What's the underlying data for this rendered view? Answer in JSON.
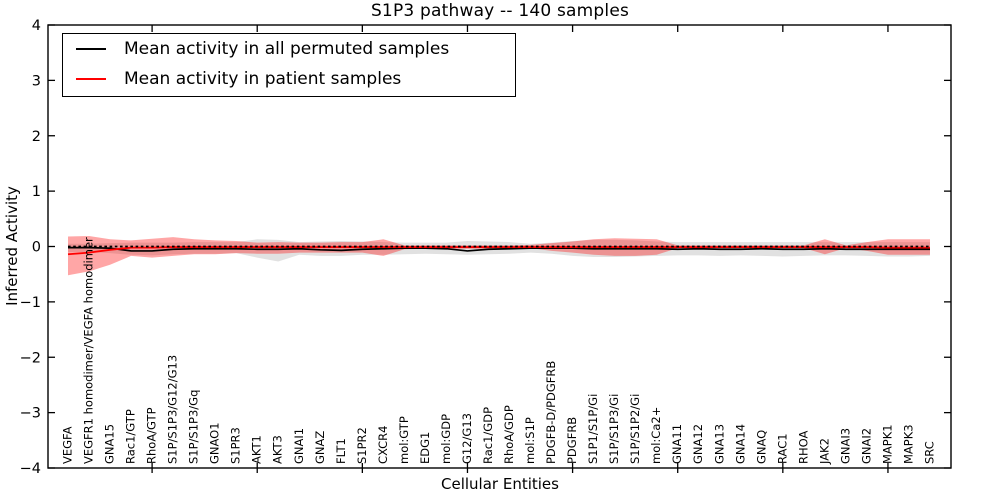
{
  "chart_data": {
    "type": "line",
    "title": "S1P3 pathway -- 140 samples",
    "xlabel": "Cellular Entities",
    "ylabel": "Inferred Activity",
    "ylim": [
      -4,
      4
    ],
    "yticks": [
      {
        "value": 4,
        "label": "4"
      },
      {
        "value": 3,
        "label": "3"
      },
      {
        "value": 2,
        "label": "2"
      },
      {
        "value": 1,
        "label": "1"
      },
      {
        "value": 0,
        "label": "0"
      },
      {
        "value": -1,
        "label": "−1"
      },
      {
        "value": -2,
        "label": "−2"
      },
      {
        "value": -3,
        "label": "−3"
      },
      {
        "value": -4,
        "label": "−4"
      }
    ],
    "x_major_tick_indices": [
      4,
      9,
      14,
      19,
      24,
      29,
      34,
      39
    ],
    "grid": false,
    "legend_position": "upper left",
    "zero_reference_line": {
      "y": 0,
      "style": "dotted",
      "color": "#000000"
    },
    "categories": [
      "VEGFA",
      "VEGFR1 homodimer/VEGFA homodimer",
      "GNA15",
      "Rac1/GTP",
      "RhoA/GTP",
      "S1P/S1P3/G12/G13",
      "S1P/S1P3/Gq",
      "GNAO1",
      "S1PR3",
      "AKT1",
      "AKT3",
      "GNAI1",
      "GNAZ",
      "FLT1",
      "S1PR2",
      "CXCR4",
      "mol:GTP",
      "EDG1",
      "mol:GDP",
      "G12/G13",
      "Rac1/GDP",
      "RhoA/GDP",
      "mol:S1P",
      "PDGFB-D/PDGFRB",
      "PDGFRB",
      "S1P1/S1P/Gi",
      "S1P/S1P3/Gi",
      "S1P/S1P2/Gi",
      "mol:Ca2+",
      "GNA11",
      "GNA12",
      "GNA13",
      "GNA14",
      "GNAQ",
      "RAC1",
      "RHOA",
      "JAK2",
      "GNAI3",
      "GNAI2",
      "MAPK1",
      "MAPK3",
      "SRC"
    ],
    "series": [
      {
        "name": "Mean activity in all permuted samples",
        "color": "#000000",
        "values": [
          -0.02,
          -0.02,
          -0.03,
          -0.08,
          -0.08,
          -0.05,
          -0.04,
          -0.04,
          -0.04,
          -0.05,
          -0.05,
          -0.04,
          -0.06,
          -0.07,
          -0.05,
          -0.04,
          -0.03,
          -0.03,
          -0.04,
          -0.08,
          -0.05,
          -0.04,
          -0.03,
          -0.03,
          -0.03,
          -0.04,
          -0.04,
          -0.04,
          -0.04,
          -0.05,
          -0.04,
          -0.05,
          -0.05,
          -0.04,
          -0.05,
          -0.05,
          -0.04,
          -0.05,
          -0.05,
          -0.05,
          -0.05,
          -0.05
        ]
      },
      {
        "name": "Mean activity in patient samples",
        "color": "#ff0000",
        "values": [
          -0.14,
          -0.11,
          -0.06,
          -0.02,
          -0.02,
          -0.01,
          -0.01,
          -0.01,
          -0.01,
          -0.01,
          -0.01,
          -0.01,
          -0.01,
          -0.01,
          -0.01,
          -0.01,
          -0.01,
          -0.01,
          -0.01,
          -0.01,
          -0.01,
          -0.01,
          -0.01,
          -0.01,
          -0.01,
          -0.01,
          -0.01,
          -0.01,
          -0.01,
          -0.01,
          -0.01,
          -0.01,
          -0.01,
          -0.01,
          -0.01,
          -0.01,
          -0.01,
          -0.01,
          -0.01,
          -0.02,
          -0.02,
          -0.02
        ]
      }
    ],
    "bands": [
      {
        "name": "permuted-range",
        "color": "#787878",
        "alpha": 0.22,
        "hi": [
          0.05,
          0.05,
          0.06,
          0.07,
          0.07,
          0.07,
          0.08,
          0.08,
          0.08,
          0.13,
          0.12,
          0.08,
          0.09,
          0.1,
          0.09,
          0.08,
          0.07,
          0.07,
          0.07,
          0.1,
          0.09,
          0.08,
          0.05,
          0.07,
          0.1,
          0.12,
          0.12,
          0.11,
          0.09,
          0.08,
          0.08,
          0.08,
          0.08,
          0.08,
          0.08,
          0.08,
          0.08,
          0.08,
          0.08,
          0.08,
          0.08,
          0.08
        ],
        "lo": [
          -0.1,
          -0.1,
          -0.12,
          -0.15,
          -0.16,
          -0.14,
          -0.13,
          -0.13,
          -0.12,
          -0.2,
          -0.27,
          -0.15,
          -0.17,
          -0.17,
          -0.15,
          -0.15,
          -0.14,
          -0.13,
          -0.14,
          -0.15,
          -0.14,
          -0.13,
          -0.11,
          -0.13,
          -0.17,
          -0.19,
          -0.19,
          -0.18,
          -0.17,
          -0.16,
          -0.16,
          -0.17,
          -0.16,
          -0.17,
          -0.18,
          -0.17,
          -0.16,
          -0.16,
          -0.17,
          -0.18,
          -0.18,
          -0.17
        ]
      },
      {
        "name": "patient-range",
        "color": "#ff1414",
        "alpha": 0.38,
        "hi": [
          0.18,
          0.19,
          0.13,
          0.11,
          0.14,
          0.17,
          0.13,
          0.11,
          0.1,
          0.07,
          0.08,
          0.07,
          0.07,
          0.08,
          0.08,
          0.13,
          0.02,
          0.02,
          0.02,
          0.02,
          0.02,
          0.02,
          0.03,
          0.06,
          0.09,
          0.13,
          0.15,
          0.14,
          0.13,
          0.02,
          0.02,
          0.02,
          0.02,
          0.02,
          0.02,
          0.02,
          0.13,
          0.02,
          0.08,
          0.13,
          0.13,
          0.13
        ],
        "lo": [
          -0.52,
          -0.45,
          -0.33,
          -0.17,
          -0.2,
          -0.17,
          -0.14,
          -0.14,
          -0.12,
          -0.13,
          -0.13,
          -0.11,
          -0.11,
          -0.11,
          -0.11,
          -0.17,
          -0.05,
          -0.04,
          -0.04,
          -0.04,
          -0.04,
          -0.04,
          -0.03,
          -0.08,
          -0.11,
          -0.15,
          -0.17,
          -0.17,
          -0.15,
          -0.03,
          -0.03,
          -0.03,
          -0.03,
          -0.03,
          -0.03,
          -0.03,
          -0.14,
          -0.03,
          -0.08,
          -0.15,
          -0.15,
          -0.15
        ]
      }
    ]
  },
  "legend": {
    "items": [
      {
        "label": "Mean activity in all permuted samples",
        "color": "#000000"
      },
      {
        "label": "Mean activity in patient samples",
        "color": "#ff0000"
      }
    ]
  },
  "colors": {
    "axes": "#000000",
    "background": "#ffffff",
    "permuted_line": "#000000",
    "patient_line": "#ff0000"
  }
}
